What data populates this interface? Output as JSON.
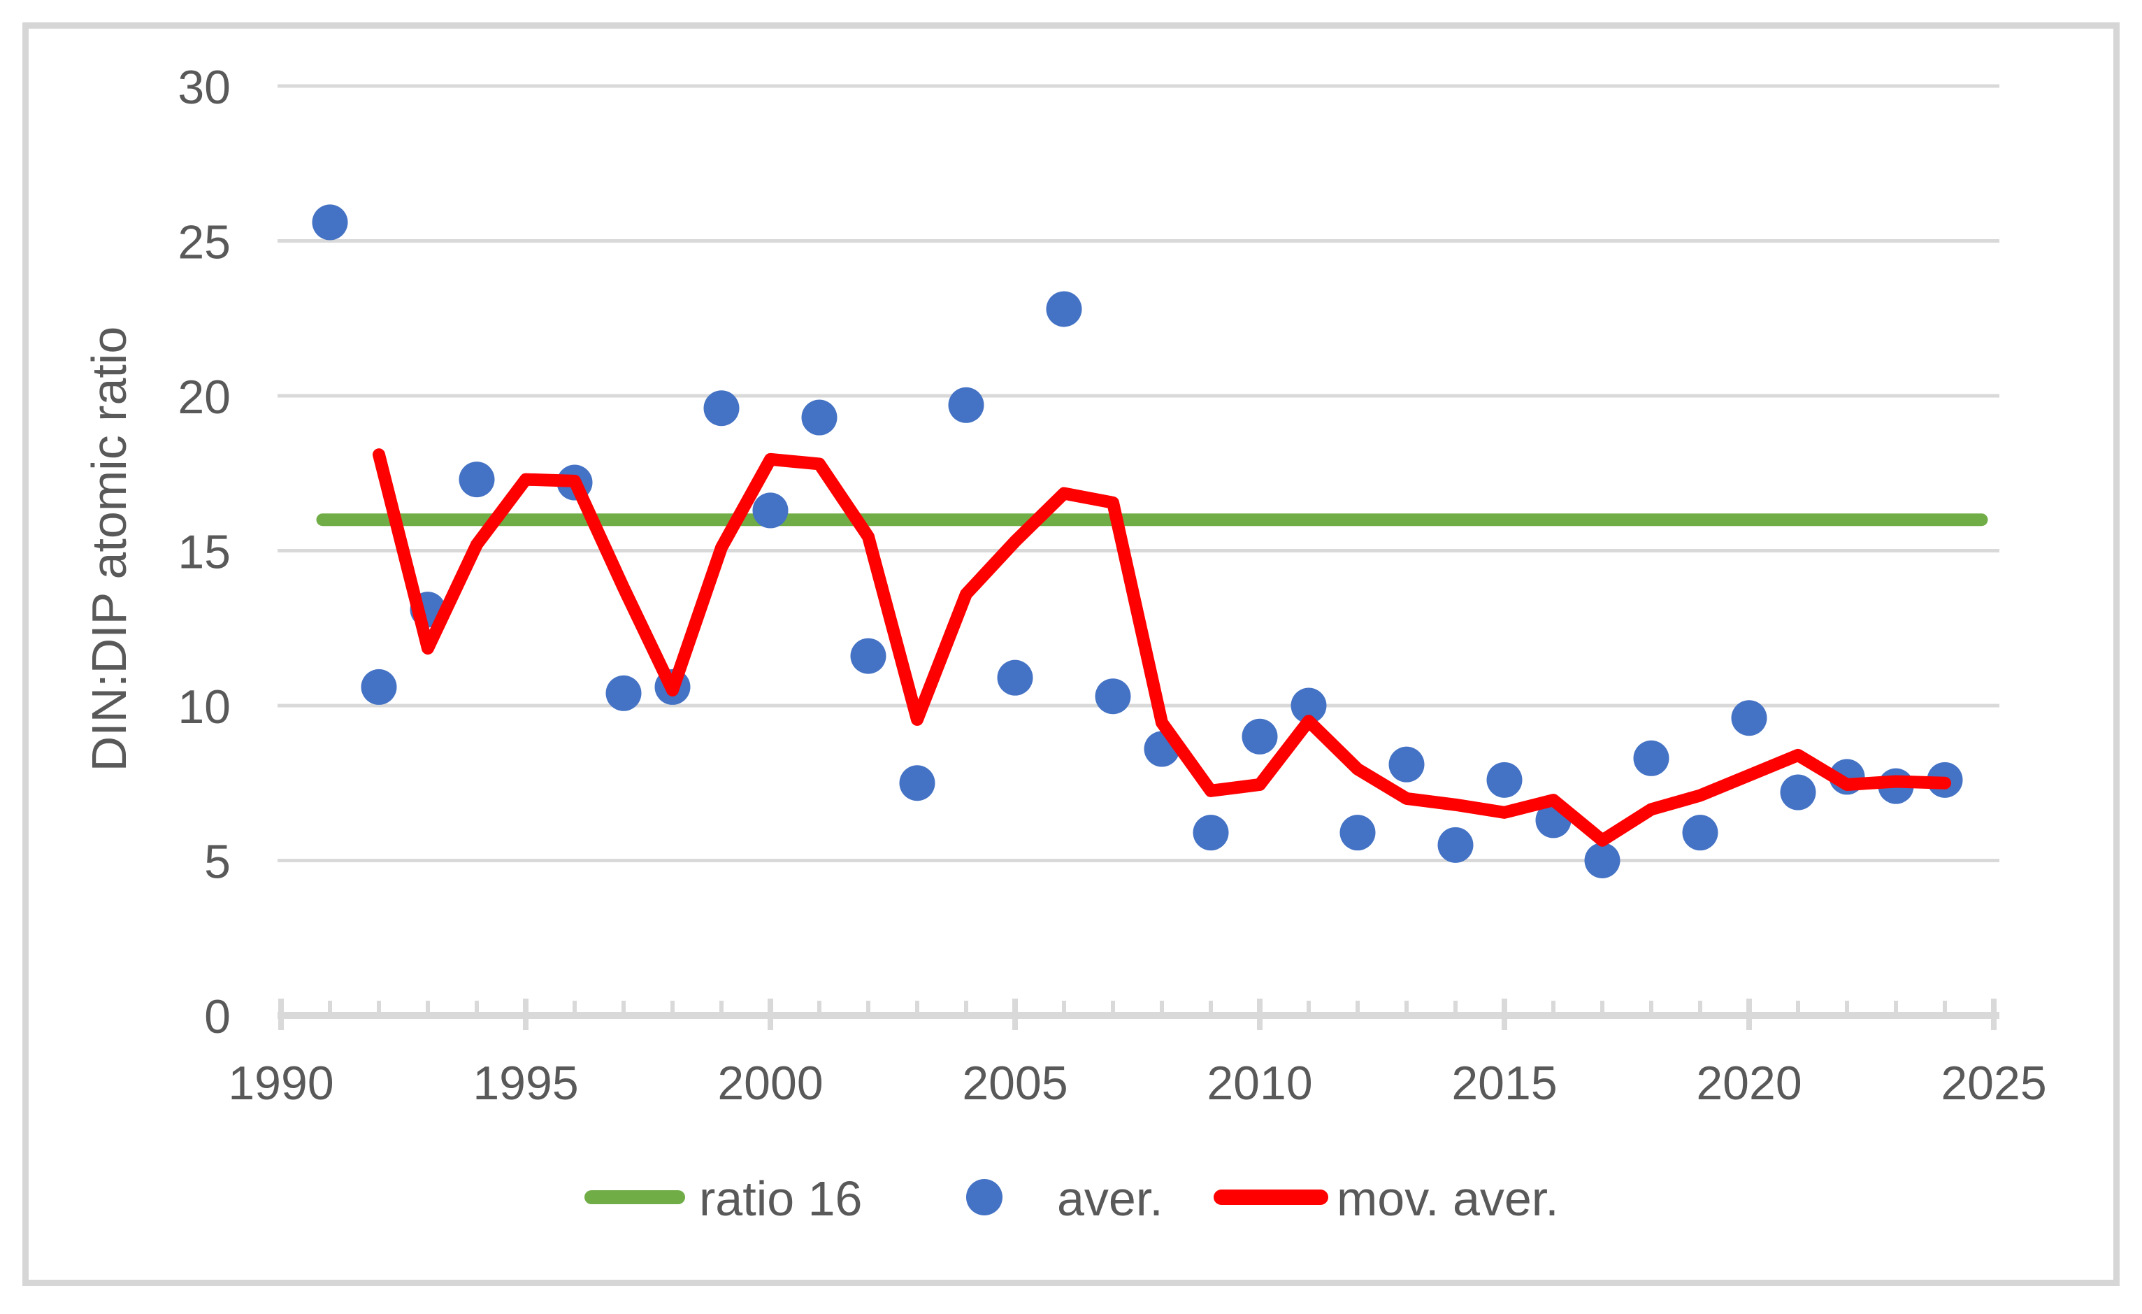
{
  "figure": {
    "background": "#FFFFFF",
    "border_color": "#D6D6D6",
    "text_color": "#595959",
    "gridline_color": "#D9D9D9"
  },
  "y_axis": {
    "title": "DIN:DIP atomic ratio",
    "min": 0,
    "max": 30,
    "tick_labels": [
      "0",
      "5",
      "10",
      "15",
      "20",
      "25",
      "30"
    ],
    "tick_values": [
      0,
      5,
      10,
      15,
      20,
      25,
      30
    ]
  },
  "x_axis": {
    "min": 1990,
    "max": 2025,
    "tick_labels": [
      "1990",
      "1995",
      "2000",
      "2005",
      "2010",
      "2015",
      "2020",
      "2025"
    ],
    "tick_values": [
      1990,
      1995,
      2000,
      2005,
      2010,
      2015,
      2020,
      2025
    ],
    "minor_tick_step": 1
  },
  "legend": {
    "position": "bottom",
    "items": [
      {
        "label": "ratio 16",
        "color": "#70AD47",
        "marker": "line"
      },
      {
        "label": "aver.",
        "color": "#4472C4",
        "marker": "circle"
      },
      {
        "label": "mov. aver.",
        "color": "#FF0000",
        "marker": "line"
      }
    ]
  },
  "chart_data": {
    "type": "scatter",
    "title": "",
    "xlabel": "",
    "ylabel": "DIN:DIP atomic ratio",
    "xlim": [
      1990,
      2025
    ],
    "ylim": [
      0,
      30
    ],
    "grid": "horizontal-only",
    "legend_position": "bottom",
    "series": [
      {
        "name": "ratio 16",
        "type": "line",
        "color": "#70AD47",
        "x": [
          1990.85,
          2024.75
        ],
        "y": [
          16,
          16
        ]
      },
      {
        "name": "aver.",
        "type": "scatter",
        "color": "#4472C4",
        "x": [
          1991,
          1992,
          1993,
          1994,
          1996,
          1997,
          1998,
          1999,
          2000,
          2001,
          2002,
          2003,
          2004,
          2005,
          2006,
          2007,
          2008,
          2009,
          2010,
          2011,
          2012,
          2013,
          2014,
          2015,
          2016,
          2017,
          2018,
          2019,
          2020,
          2021,
          2022,
          2023,
          2024
        ],
        "y": [
          25.6,
          10.6,
          13.1,
          17.3,
          17.2,
          10.4,
          10.6,
          19.6,
          16.3,
          19.3,
          11.6,
          7.5,
          19.7,
          10.9,
          22.8,
          10.3,
          8.6,
          5.9,
          9.0,
          10.0,
          5.9,
          8.1,
          5.5,
          7.6,
          6.3,
          5.0,
          8.3,
          5.9,
          9.6,
          7.2,
          7.7,
          7.4,
          7.6
        ]
      },
      {
        "name": "mov. aver.",
        "type": "line",
        "color": "#FF0000",
        "x": [
          1992,
          1993,
          1994,
          1995,
          1996,
          1997,
          1998,
          1999,
          2000,
          2001,
          2002,
          2003,
          2004,
          2005,
          2006,
          2007,
          2008,
          2009,
          2010,
          2011,
          2012,
          2013,
          2014,
          2015,
          2016,
          2017,
          2018,
          2019,
          2020,
          2021,
          2022,
          2023,
          2024
        ],
        "y": [
          18.1,
          11.85,
          15.2,
          17.3,
          17.25,
          13.8,
          10.5,
          15.1,
          17.95,
          17.8,
          15.45,
          9.55,
          13.6,
          15.3,
          16.85,
          16.55,
          9.45,
          7.25,
          7.45,
          9.5,
          7.95,
          7.0,
          6.8,
          6.55,
          6.95,
          5.65,
          6.65,
          7.1,
          7.75,
          8.4,
          7.45,
          7.55,
          7.5
        ]
      }
    ]
  }
}
